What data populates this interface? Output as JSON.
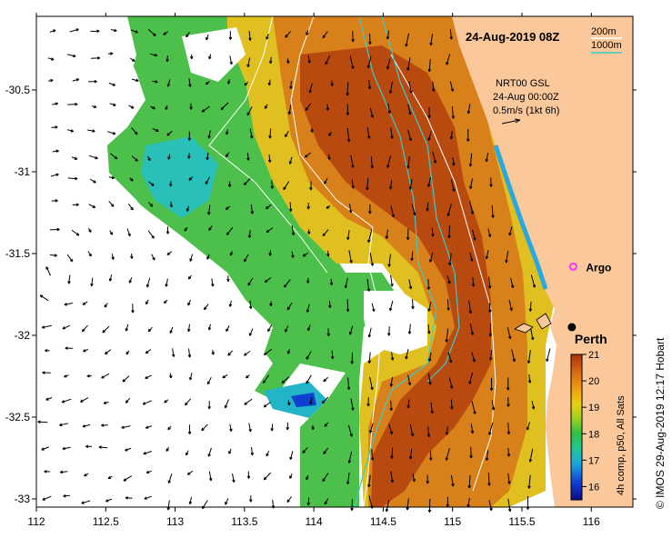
{
  "map": {
    "title": "24-Aug-2019 08Z",
    "scale_legend": {
      "label_200": "200m",
      "label_1000": "1000m",
      "color_200": "#ffffff",
      "color_1000": "#3ccbc8"
    },
    "current_legend": {
      "line1": "NRT00 GSL",
      "line2": "24-Aug 00:00Z",
      "line3": "0.5m/s (1kt 6h)"
    },
    "markers": [
      {
        "name": "Argo",
        "label": "Argo",
        "lon": 115.87,
        "lat": -31.58,
        "color": "#ff33ff"
      },
      {
        "name": "Perth",
        "label": "Perth",
        "lon": 115.86,
        "lat": -31.95,
        "color": "#000000"
      }
    ],
    "x_ticks": [
      "112",
      "112.5",
      "113",
      "113.5",
      "114",
      "114.5",
      "115",
      "115.5",
      "116"
    ],
    "y_ticks": [
      "-30.5",
      "-31",
      "-31.5",
      "-32",
      "-32.5",
      "-33"
    ],
    "lon_range": [
      112.0,
      116.3
    ],
    "lat_range": [
      -33.05,
      -30.05
    ],
    "colorbar": {
      "ticks": [
        "21",
        "20",
        "19",
        "18",
        "17",
        "16"
      ],
      "min": 15.5,
      "max": 21,
      "caption": "4h comp, p50, All Sats"
    },
    "credit": "© IMOS 29-Aug-2019 12:17 Hobart",
    "colors": {
      "land": "#fac89a",
      "warm": "#b84a10",
      "cool": "#34c060",
      "currents": "#000000"
    }
  }
}
